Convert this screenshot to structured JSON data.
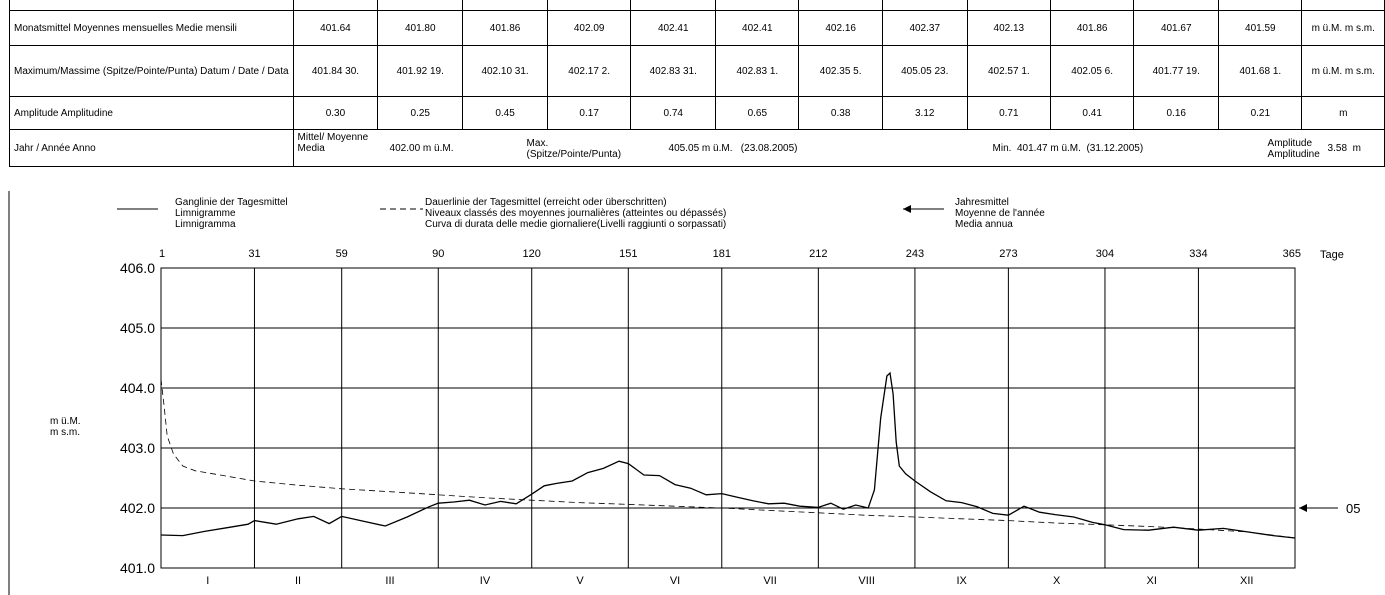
{
  "table": {
    "rows": {
      "mean": {
        "label": "Monatsmittel\nMoyennes mensuelles\nMedie mensili",
        "values": [
          "401.64",
          "401.80",
          "401.86",
          "402.09",
          "402.41",
          "402.41",
          "402.16",
          "402.37",
          "402.13",
          "401.86",
          "401.67",
          "401.59"
        ],
        "unit": "m ü.M.\nm s.m."
      },
      "max": {
        "label": "Maximum/Massime\n(Spitze/Pointe/Punta)\nDatum / Date / Data",
        "values": [
          "401.84\n30.",
          "401.92\n19.",
          "402.10\n31.",
          "402.17\n2.",
          "402.83\n31.",
          "402.83\n1.",
          "402.35\n5.",
          "405.05\n23.",
          "402.57\n1.",
          "402.05\n6.",
          "401.77\n19.",
          "401.68\n1."
        ],
        "unit": "m ü.M.\nm s.m."
      },
      "amp": {
        "label": "Amplitude\nAmplitudine",
        "values": [
          "0.30",
          "0.25",
          "0.45",
          "0.17",
          "0.74",
          "0.65",
          "0.38",
          "3.12",
          "0.71",
          "0.41",
          "0.16",
          "0.21"
        ],
        "unit": "m"
      }
    },
    "year": {
      "label": "Jahr / Année\nAnno",
      "mean_label": "Mittel/ Moyenne\nMedia",
      "mean_value": "402.00 m ü.M.",
      "max_label": "Max.\n(Spitze/Pointe/Punta)",
      "max_value": "405.05 m ü.M.   (23.08.2005)",
      "min_value": "Min.  401.47 m ü.M.  (31.12.2005)",
      "amp_label": "Amplitude\nAmplitudine",
      "amp_value": "3.58  m"
    }
  },
  "legend": {
    "hydrograph": "Ganglinie der Tagesmittel\nLimnigramme\nLimnigramma",
    "duration": "Dauerlinie der Tagesmittel (erreicht oder überschritten)\nNiveaux classés des moyennes journalières (atteintes ou dépassés)\nCurva di durata delle medie giornaliere(Livelli raggiunti o sorpassati)",
    "annual_mean": "Jahresmittel\nMoyenne de l'année\nMedia annua"
  },
  "chart_data": {
    "type": "line",
    "ylabel": "m ü.M.\nm s.m.",
    "xlabel": "Tage",
    "ylim": [
      401.0,
      406.0
    ],
    "xlim": [
      1,
      365
    ],
    "y_ticks": [
      "406.0",
      "405.0",
      "404.0",
      "403.0",
      "402.0",
      "401.0"
    ],
    "day_ticks": [
      "1",
      "31",
      "59",
      "90",
      "120",
      "151",
      "181",
      "212",
      "243",
      "273",
      "304",
      "334",
      "365"
    ],
    "months": [
      "I",
      "II",
      "III",
      "IV",
      "V",
      "VI",
      "VII",
      "VIII",
      "IX",
      "X",
      "XI",
      "XII"
    ],
    "grid": true,
    "annual_mean": {
      "value": 402.0,
      "label": "05"
    },
    "series": [
      {
        "style": "solid",
        "x": [
          1,
          8,
          15,
          22,
          29,
          31,
          38,
          45,
          50,
          55,
          59,
          66,
          73,
          80,
          87,
          90,
          95,
          100,
          105,
          110,
          115,
          120,
          124,
          128,
          133,
          138,
          143,
          148,
          151,
          156,
          161,
          166,
          171,
          176,
          181,
          186,
          191,
          196,
          201,
          206,
          212,
          216,
          220,
          224,
          228,
          230,
          232,
          234,
          235,
          236,
          237,
          238,
          240,
          243,
          248,
          253,
          258,
          263,
          268,
          273,
          278,
          283,
          288,
          294,
          300,
          304,
          310,
          318,
          326,
          334,
          342,
          350,
          358,
          365
        ],
        "y": [
          401.55,
          401.54,
          401.61,
          401.67,
          401.73,
          401.79,
          401.73,
          401.82,
          401.86,
          401.74,
          401.86,
          401.78,
          401.7,
          401.85,
          402.02,
          402.08,
          402.1,
          402.13,
          402.05,
          402.11,
          402.07,
          402.23,
          402.37,
          402.41,
          402.45,
          402.59,
          402.66,
          402.78,
          402.74,
          402.55,
          402.54,
          402.39,
          402.33,
          402.22,
          402.24,
          402.18,
          402.12,
          402.07,
          402.08,
          402.03,
          402.01,
          402.08,
          401.98,
          402.05,
          402.0,
          402.3,
          403.5,
          404.2,
          404.25,
          403.9,
          403.1,
          402.7,
          402.57,
          402.45,
          402.27,
          402.12,
          402.09,
          402.02,
          401.91,
          401.88,
          402.03,
          401.93,
          401.89,
          401.85,
          401.76,
          401.72,
          401.64,
          401.63,
          401.68,
          401.63,
          401.66,
          401.6,
          401.54,
          401.5
        ]
      },
      {
        "style": "dashed",
        "x": [
          1,
          2,
          3,
          5,
          8,
          12,
          20,
          31,
          45,
          59,
          75,
          90,
          105,
          120,
          135,
          151,
          166,
          181,
          196,
          212,
          227,
          243,
          258,
          273,
          288,
          304,
          319,
          334,
          350,
          365
        ],
        "y": [
          404.15,
          403.7,
          403.2,
          402.9,
          402.7,
          402.62,
          402.55,
          402.45,
          402.38,
          402.32,
          402.27,
          402.22,
          402.17,
          402.13,
          402.09,
          402.06,
          402.03,
          402.0,
          401.96,
          401.92,
          401.88,
          401.85,
          401.82,
          401.79,
          401.75,
          401.72,
          401.69,
          401.65,
          401.6,
          401.5
        ]
      }
    ]
  }
}
